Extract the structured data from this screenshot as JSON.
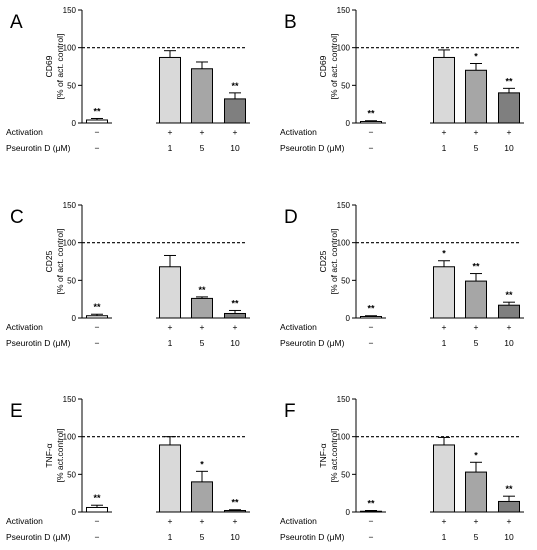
{
  "chart_data": [
    {
      "panel": "A",
      "type": "bar",
      "ylabel": [
        "CD69",
        "[% of act. control]"
      ],
      "ylim": [
        0,
        150
      ],
      "yticks": [
        0,
        50,
        100,
        150
      ],
      "reference_line": 100,
      "groups": [
        {
          "activation": "−",
          "dose": "−",
          "value": 4,
          "error": 2,
          "sig": "**",
          "fill": "#ffffff"
        },
        {
          "activation": "+",
          "dose": "1",
          "value": 87,
          "error": 9,
          "sig": "",
          "fill": "#d9d9d9"
        },
        {
          "activation": "+",
          "dose": "5",
          "value": 72,
          "error": 9,
          "sig": "",
          "fill": "#a6a6a6"
        },
        {
          "activation": "+",
          "dose": "10",
          "value": 32,
          "error": 8,
          "sig": "**",
          "fill": "#7f7f7f"
        }
      ]
    },
    {
      "panel": "B",
      "type": "bar",
      "ylabel": [
        "CD69",
        "[% of act. control]"
      ],
      "ylim": [
        0,
        150
      ],
      "yticks": [
        0,
        50,
        100,
        150
      ],
      "reference_line": 100,
      "groups": [
        {
          "activation": "−",
          "dose": "−",
          "value": 2,
          "error": 1,
          "sig": "**",
          "fill": "#ffffff"
        },
        {
          "activation": "+",
          "dose": "1",
          "value": 87,
          "error": 10,
          "sig": "",
          "fill": "#d9d9d9"
        },
        {
          "activation": "+",
          "dose": "5",
          "value": 70,
          "error": 9,
          "sig": "*",
          "fill": "#a6a6a6"
        },
        {
          "activation": "+",
          "dose": "10",
          "value": 40,
          "error": 6,
          "sig": "**",
          "fill": "#7f7f7f"
        }
      ]
    },
    {
      "panel": "C",
      "type": "bar",
      "ylabel": [
        "CD25",
        "[% of act. control]"
      ],
      "ylim": [
        0,
        150
      ],
      "yticks": [
        0,
        50,
        100,
        150
      ],
      "reference_line": 100,
      "groups": [
        {
          "activation": "−",
          "dose": "−",
          "value": 3,
          "error": 2,
          "sig": "**",
          "fill": "#ffffff"
        },
        {
          "activation": "+",
          "dose": "1",
          "value": 68,
          "error": 15,
          "sig": "",
          "fill": "#d9d9d9"
        },
        {
          "activation": "+",
          "dose": "5",
          "value": 26,
          "error": 2,
          "sig": "**",
          "fill": "#a6a6a6"
        },
        {
          "activation": "+",
          "dose": "10",
          "value": 6,
          "error": 4,
          "sig": "**",
          "fill": "#7f7f7f"
        }
      ]
    },
    {
      "panel": "D",
      "type": "bar",
      "ylabel": [
        "CD25",
        "[% of act. control]"
      ],
      "ylim": [
        0,
        150
      ],
      "yticks": [
        0,
        50,
        100,
        150
      ],
      "reference_line": 100,
      "groups": [
        {
          "activation": "−",
          "dose": "−",
          "value": 2,
          "error": 1,
          "sig": "**",
          "fill": "#ffffff"
        },
        {
          "activation": "+",
          "dose": "1",
          "value": 68,
          "error": 8,
          "sig": "*",
          "fill": "#d9d9d9"
        },
        {
          "activation": "+",
          "dose": "5",
          "value": 49,
          "error": 10,
          "sig": "**",
          "fill": "#a6a6a6"
        },
        {
          "activation": "+",
          "dose": "10",
          "value": 17,
          "error": 4,
          "sig": "**",
          "fill": "#7f7f7f"
        }
      ]
    },
    {
      "panel": "E",
      "type": "bar",
      "ylabel": [
        "TNF-α",
        "[% act.control]"
      ],
      "ylim": [
        0,
        150
      ],
      "yticks": [
        0,
        50,
        100,
        150
      ],
      "reference_line": 100,
      "groups": [
        {
          "activation": "−",
          "dose": "−",
          "value": 6,
          "error": 3,
          "sig": "**",
          "fill": "#ffffff"
        },
        {
          "activation": "+",
          "dose": "1",
          "value": 89,
          "error": 11,
          "sig": "",
          "fill": "#d9d9d9"
        },
        {
          "activation": "+",
          "dose": "5",
          "value": 40,
          "error": 14,
          "sig": "*",
          "fill": "#a6a6a6"
        },
        {
          "activation": "+",
          "dose": "10",
          "value": 2,
          "error": 1,
          "sig": "**",
          "fill": "#7f7f7f"
        }
      ]
    },
    {
      "panel": "F",
      "type": "bar",
      "ylabel": [
        "TNF-α",
        "[% act.control]"
      ],
      "ylim": [
        0,
        150
      ],
      "yticks": [
        0,
        50,
        100,
        150
      ],
      "reference_line": 100,
      "groups": [
        {
          "activation": "−",
          "dose": "−",
          "value": 1,
          "error": 1,
          "sig": "**",
          "fill": "#ffffff"
        },
        {
          "activation": "+",
          "dose": "1",
          "value": 89,
          "error": 10,
          "sig": "",
          "fill": "#d9d9d9"
        },
        {
          "activation": "+",
          "dose": "5",
          "value": 53,
          "error": 13,
          "sig": "*",
          "fill": "#a6a6a6"
        },
        {
          "activation": "+",
          "dose": "10",
          "value": 14,
          "error": 7,
          "sig": "**",
          "fill": "#7f7f7f"
        }
      ]
    }
  ],
  "labels": {
    "activation": "Activation",
    "dose": "Pseurotin D (μM)"
  }
}
